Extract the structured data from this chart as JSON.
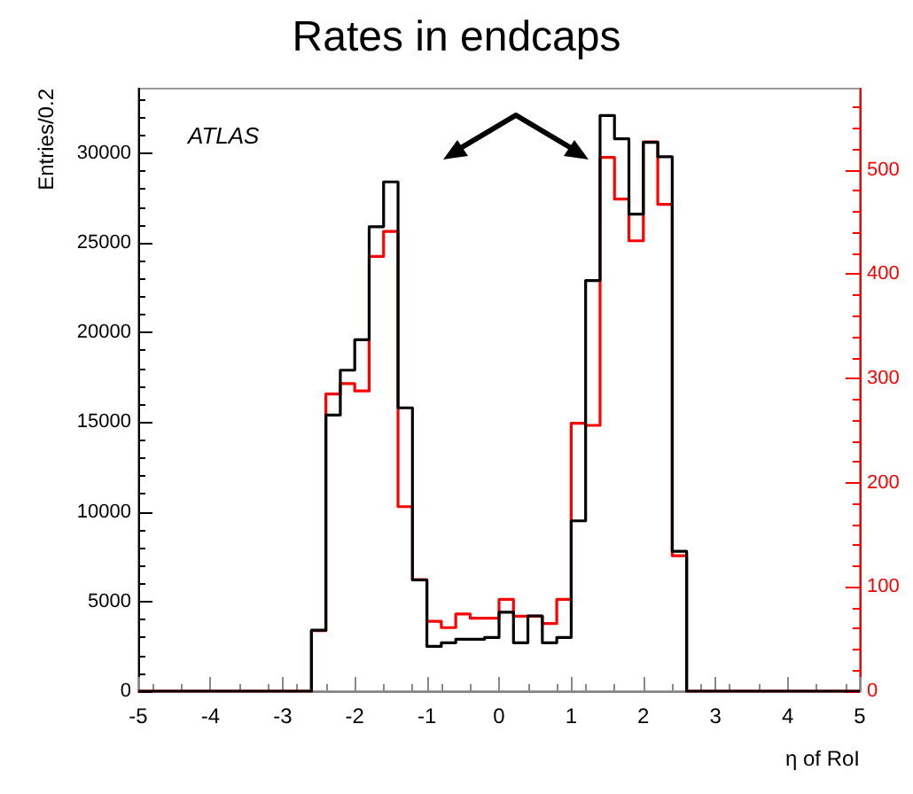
{
  "chart_data": {
    "type": "histogram",
    "title": "Rates in endcaps",
    "xlabel": "η of RoI",
    "ylabel": "Entries/0.2",
    "annotations": [
      "ATLAS"
    ],
    "bins": [
      -5,
      -4.8,
      -4.6,
      -4.4,
      -4.2,
      -4,
      -3.8,
      -3.6,
      -3.4,
      -3.2,
      -3,
      -2.8,
      -2.6,
      -2.4,
      -2.2,
      -2,
      -1.8,
      -1.6,
      -1.4,
      -1.2,
      -1,
      -0.8,
      -0.6,
      -0.4,
      -0.2,
      0,
      0.2,
      0.4,
      0.6,
      0.8,
      1,
      1.2,
      1.4,
      1.6,
      1.8,
      2,
      2.2,
      2.4,
      2.6,
      2.8,
      3,
      3.2,
      3.4,
      3.6,
      3.8,
      4,
      4.2,
      4.4,
      4.6,
      4.8,
      5
    ],
    "series": [
      {
        "color": "#000000",
        "values": [
          0,
          0,
          0,
          0,
          0,
          0,
          0,
          0,
          0,
          0,
          0,
          0,
          3400,
          15400,
          17900,
          19600,
          25900,
          28400,
          15800,
          6200,
          2500,
          2700,
          2900,
          2900,
          3000,
          4400,
          2700,
          4200,
          2700,
          3000,
          9500,
          22900,
          32100,
          30800,
          26600,
          30600,
          29800,
          7800,
          0,
          0,
          0,
          0,
          0,
          0,
          0,
          0,
          0,
          0,
          0,
          0
        ]
      },
      {
        "color": "#ff0000",
        "axis": "y2",
        "values": [
          0,
          0,
          0,
          0,
          0,
          0,
          0,
          0,
          0,
          0,
          0,
          0,
          58,
          285,
          295,
          288,
          417,
          441,
          177,
          107,
          67,
          61,
          74,
          70,
          70,
          88,
          72,
          72,
          65,
          88,
          257,
          255,
          512,
          472,
          432,
          527,
          467,
          130,
          0,
          0,
          0,
          0,
          0,
          0,
          0,
          0,
          0,
          0,
          0,
          0
        ]
      }
    ],
    "xlim": [
      -5,
      5
    ],
    "xticks": [
      -5,
      -4,
      -3,
      -2,
      -1,
      0,
      1,
      2,
      3,
      4,
      5
    ],
    "ylim": [
      0,
      33600
    ],
    "yticks": [
      0,
      5000,
      10000,
      15000,
      20000,
      25000,
      30000
    ],
    "y2lim": [
      0,
      578
    ],
    "y2ticks": [
      0,
      100,
      200,
      300,
      400,
      500
    ],
    "grid": false
  }
}
